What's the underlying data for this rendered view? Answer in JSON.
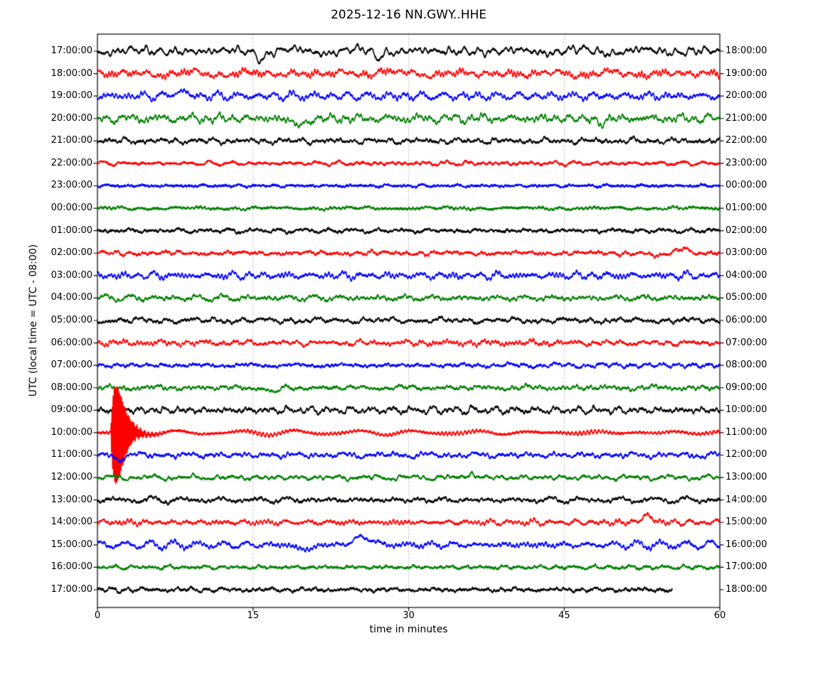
{
  "title": "2025-12-16 NN.GWY..HHE",
  "xlabel": "time in minutes",
  "ylabel": "UTC (local time = UTC - 08:00)",
  "chart_data": {
    "type": "line",
    "subtype": "seismogram-dayplot",
    "title": "2025-12-16 NN.GWY..HHE",
    "xlabel": "time in minutes",
    "ylabel": "UTC (local time = UTC - 08:00)",
    "xlim": [
      0,
      60
    ],
    "x_ticks": [
      0,
      15,
      30,
      45,
      60
    ],
    "grid_minutes": [
      15,
      30,
      45
    ],
    "grid_style": "dotted",
    "legend": "none",
    "left_axis": "UTC start time of each one-hour trace",
    "right_axis": "UTC end time of each one-hour trace",
    "colors": {
      "black": "#000000",
      "red": "#ff0000",
      "blue": "#0000ff",
      "green": "#008000"
    },
    "event_annotation": {
      "row_utc": "10:00:00",
      "minute": 1.8,
      "description": "high-amplitude seismic event with decaying coda"
    },
    "last_row_end_minute": 55.4,
    "rows": [
      {
        "utc": "17:00:00",
        "local": "18:00:00",
        "color": "black",
        "amp": 6.5,
        "seed": 1,
        "features": [
          {
            "t": 15.8,
            "a": -10,
            "w": 0.5
          },
          {
            "t": 27.0,
            "a": -9,
            "w": 0.45
          }
        ]
      },
      {
        "utc": "18:00:00",
        "local": "19:00:00",
        "color": "red",
        "amp": 6.0,
        "seed": 2,
        "features": [
          {
            "t": 27.3,
            "a": 10,
            "w": 0.35
          }
        ]
      },
      {
        "utc": "19:00:00",
        "local": "20:00:00",
        "color": "blue",
        "amp": 5.5,
        "seed": 3,
        "features": [
          {
            "t": 8.0,
            "a": 7,
            "w": 0.8
          }
        ]
      },
      {
        "utc": "20:00:00",
        "local": "21:00:00",
        "color": "green",
        "amp": 6.0,
        "seed": 4,
        "features": [
          {
            "t": 19.5,
            "a": -9,
            "w": 1.0
          },
          {
            "t": 48.5,
            "a": -8,
            "w": 0.5
          }
        ]
      },
      {
        "utc": "21:00:00",
        "local": "22:00:00",
        "color": "black",
        "amp": 4.0,
        "seed": 5,
        "features": []
      },
      {
        "utc": "22:00:00",
        "local": "23:00:00",
        "color": "red",
        "amp": 2.8,
        "seed": 6,
        "features": []
      },
      {
        "utc": "23:00:00",
        "local": "00:00:00",
        "color": "blue",
        "amp": 1.8,
        "seed": 7,
        "features": []
      },
      {
        "utc": "00:00:00",
        "local": "01:00:00",
        "color": "green",
        "amp": 2.2,
        "seed": 8,
        "features": []
      },
      {
        "utc": "01:00:00",
        "local": "02:00:00",
        "color": "black",
        "amp": 3.0,
        "seed": 9,
        "features": []
      },
      {
        "utc": "02:00:00",
        "local": "03:00:00",
        "color": "red",
        "amp": 3.0,
        "seed": 10,
        "features": [
          {
            "t": 54.0,
            "a": -5,
            "w": 0.8
          },
          {
            "t": 56.5,
            "a": 8,
            "w": 0.7
          }
        ]
      },
      {
        "utc": "03:00:00",
        "local": "04:00:00",
        "color": "blue",
        "amp": 5.0,
        "seed": 11,
        "features": []
      },
      {
        "utc": "04:00:00",
        "local": "05:00:00",
        "color": "green",
        "amp": 4.5,
        "seed": 12,
        "features": []
      },
      {
        "utc": "05:00:00",
        "local": "06:00:00",
        "color": "black",
        "amp": 4.0,
        "seed": 13,
        "features": []
      },
      {
        "utc": "06:00:00",
        "local": "07:00:00",
        "color": "red",
        "amp": 4.0,
        "seed": 14,
        "features": []
      },
      {
        "utc": "07:00:00",
        "local": "08:00:00",
        "color": "blue",
        "amp": 3.2,
        "seed": 15,
        "features": []
      },
      {
        "utc": "08:00:00",
        "local": "09:00:00",
        "color": "green",
        "amp": 3.4,
        "seed": 16,
        "features": [
          {
            "t": 17.0,
            "a": -8,
            "w": 0.6
          }
        ]
      },
      {
        "utc": "09:00:00",
        "local": "10:00:00",
        "color": "black",
        "amp": 5.0,
        "seed": 17,
        "features": []
      },
      {
        "utc": "10:00:00",
        "local": "11:00:00",
        "color": "red",
        "amp": 4.0,
        "seed": 18,
        "features": [],
        "event": {
          "t0": 1.3,
          "rise": 0.5,
          "a1": 66,
          "a2": 8,
          "d2": 2.0,
          "f": 10
        }
      },
      {
        "utc": "11:00:00",
        "local": "12:00:00",
        "color": "blue",
        "amp": 4.0,
        "seed": 19,
        "features": [
          {
            "t": 2.0,
            "a": -6,
            "w": 0.5
          }
        ]
      },
      {
        "utc": "12:00:00",
        "local": "13:00:00",
        "color": "green",
        "amp": 3.5,
        "seed": 20,
        "features": [
          {
            "t": 36.0,
            "a": 9,
            "w": 0.35
          }
        ]
      },
      {
        "utc": "13:00:00",
        "local": "14:00:00",
        "color": "black",
        "amp": 4.0,
        "seed": 21,
        "features": []
      },
      {
        "utc": "14:00:00",
        "local": "15:00:00",
        "color": "red",
        "amp": 4.0,
        "seed": 22,
        "features": [
          {
            "t": 53.0,
            "a": 9,
            "w": 0.8
          }
        ]
      },
      {
        "utc": "15:00:00",
        "local": "16:00:00",
        "color": "blue",
        "amp": 5.0,
        "seed": 23,
        "features": [
          {
            "t": 20.0,
            "a": -7,
            "w": 1.0
          },
          {
            "t": 25.6,
            "a": 11,
            "w": 1.2
          }
        ]
      },
      {
        "utc": "16:00:00",
        "local": "17:00:00",
        "color": "green",
        "amp": 2.6,
        "seed": 24,
        "features": []
      },
      {
        "utc": "17:00:00",
        "local": "18:00:00",
        "color": "black",
        "amp": 3.2,
        "seed": 25,
        "features": [],
        "end": 55.4
      }
    ]
  }
}
